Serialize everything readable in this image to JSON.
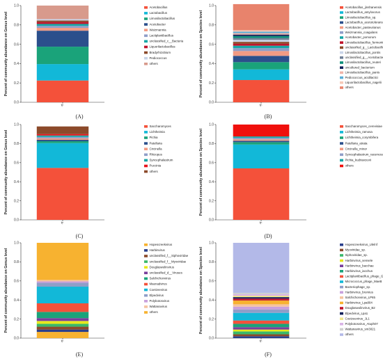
{
  "chart_data": [
    {
      "type": "bar",
      "stacked": true,
      "caption": "(A)",
      "ylabel": "Percent of community abundance on Genus level",
      "categories": [
        "A"
      ],
      "ylim": [
        0,
        1
      ],
      "yticks": [
        "0.0",
        "0.2",
        "0.4",
        "0.6",
        "0.8",
        "1.0"
      ],
      "series": [
        {
          "name": "Acetobacillus",
          "color": "#f4513a",
          "values": [
            0.225
          ]
        },
        {
          "name": "Lactobacillus",
          "color": "#12b8d8",
          "values": [
            0.17
          ]
        },
        {
          "name": "Limosilactobacillus",
          "color": "#1aa37a",
          "values": [
            0.18
          ]
        },
        {
          "name": "Acetobacter",
          "color": "#2b4f8c",
          "values": [
            0.165
          ]
        },
        {
          "name": "Weizmannia",
          "color": "#f29b84",
          "values": [
            0.03
          ]
        },
        {
          "name": "Lactiplantibacillus",
          "color": "#8f9ec8",
          "values": [
            0.02
          ]
        },
        {
          "name": "unclassified_c__Bacteria",
          "color": "#16a6a6",
          "values": [
            0.02
          ]
        },
        {
          "name": "Liquorilactobacillus",
          "color": "#c0142c",
          "values": [
            0.02
          ]
        },
        {
          "name": "Bradyrhizobium",
          "color": "#8c4a2a",
          "values": [
            0.015
          ]
        },
        {
          "name": "Pediococcus",
          "color": "#c9d4e8",
          "values": [
            0.015
          ]
        },
        {
          "name": "others",
          "color": "#d89a8c",
          "values": [
            0.14
          ]
        }
      ]
    },
    {
      "type": "bar",
      "stacked": true,
      "caption": "(B)",
      "ylabel": "Percent of community abundance on Species level",
      "categories": [
        "A"
      ],
      "ylim": [
        0,
        1
      ],
      "yticks": [
        "0.0",
        "0.2",
        "0.4",
        "0.6",
        "0.8",
        "1.0"
      ],
      "series": [
        {
          "name": "Acetobacillus_jinshanensis",
          "color": "#f4513a",
          "values": [
            0.23
          ]
        },
        {
          "name": "Lactobacillus_amylovorus",
          "color": "#12b8d8",
          "values": [
            0.11
          ]
        },
        {
          "name": "Limosilactobacillus_sp.",
          "color": "#1aa37a",
          "values": [
            0.075
          ]
        },
        {
          "name": "Lactobacillus_acetotolerans",
          "color": "#2b4f8c",
          "values": [
            0.065
          ]
        },
        {
          "name": "Acetobacter_pasteurianus",
          "color": "#f29b84",
          "values": [
            0.05
          ]
        },
        {
          "name": "Weizmannia_coagulans",
          "color": "#8f9ec8",
          "values": [
            0.03
          ]
        },
        {
          "name": "Acetobacter_pomorum",
          "color": "#16a6a6",
          "values": [
            0.025
          ]
        },
        {
          "name": "Limosilactobacillus_fermentum",
          "color": "#c0142c",
          "values": [
            0.02
          ]
        },
        {
          "name": "unclassified_g__Lactobacillus",
          "color": "#8c4a2a",
          "values": [
            0.02
          ]
        },
        {
          "name": "Limosilactobacillus_pontis",
          "color": "#c9d4e8",
          "values": [
            0.02
          ]
        },
        {
          "name": "unclassified_g__Acetobacter",
          "color": "#6f7f96",
          "values": [
            0.02
          ]
        },
        {
          "name": "Limosilactobacillus_reuteri",
          "color": "#0b8f7a",
          "values": [
            0.02
          ]
        },
        {
          "name": "uncultured_bacterium",
          "color": "#10205a",
          "values": [
            0.015
          ]
        },
        {
          "name": "Limosilactobacillus_panis",
          "color": "#f0b3a8",
          "values": [
            0.015
          ]
        },
        {
          "name": "Pediococcus_acidilactici",
          "color": "#5aaed6",
          "values": [
            0.015
          ]
        },
        {
          "name": "Liquorilactobacillus_nagelii",
          "color": "#f5c9b8",
          "values": [
            0.015
          ]
        },
        {
          "name": "others",
          "color": "#e8836c",
          "values": [
            0.27
          ]
        }
      ]
    },
    {
      "type": "bar",
      "stacked": true,
      "caption": "(C)",
      "ylabel": "Percent of community abundance on Genus level",
      "categories": [
        "A"
      ],
      "ylim": [
        0,
        1
      ],
      "yticks": [
        "0.0",
        "0.2",
        "0.4",
        "0.6",
        "0.8",
        "1.0"
      ],
      "series": [
        {
          "name": "Saccharomyces",
          "color": "#f4513a",
          "values": [
            0.545
          ]
        },
        {
          "name": "Lichtheimia",
          "color": "#12b8d8",
          "values": [
            0.26
          ]
        },
        {
          "name": "Pichia",
          "color": "#1aa37a",
          "values": [
            0.02
          ]
        },
        {
          "name": "Patellaria",
          "color": "#2b4f8c",
          "values": [
            0.015
          ]
        },
        {
          "name": "Circinella",
          "color": "#f29b84",
          "values": [
            0.015
          ]
        },
        {
          "name": "Rhizopus",
          "color": "#8f9ec8",
          "values": [
            0.015
          ]
        },
        {
          "name": "Syncephalastrum",
          "color": "#16a6a6",
          "values": [
            0.015
          ]
        },
        {
          "name": "Puccinia",
          "color": "#e8141c",
          "values": [
            0.015
          ]
        },
        {
          "name": "others",
          "color": "#8c4a2a",
          "values": [
            0.08
          ]
        }
      ]
    },
    {
      "type": "bar",
      "stacked": true,
      "caption": "(D)",
      "ylabel": "Percent of community abundance on Species level",
      "categories": [
        "A"
      ],
      "ylim": [
        0,
        1
      ],
      "yticks": [
        "0.0",
        "0.2",
        "0.4",
        "0.6",
        "0.8",
        "1.0"
      ],
      "series": [
        {
          "name": "Saccharomyces_cerevisiae",
          "color": "#f4513a",
          "values": [
            0.54
          ]
        },
        {
          "name": "Lichtheimia_ramosa",
          "color": "#12b8d8",
          "values": [
            0.25
          ]
        },
        {
          "name": "Lichtheimia_corymbifera",
          "color": "#1aa37a",
          "values": [
            0.025
          ]
        },
        {
          "name": "Patellaria_atrata",
          "color": "#2b4f8c",
          "values": [
            0.015
          ]
        },
        {
          "name": "Circinella_minor",
          "color": "#f29b84",
          "values": [
            0.015
          ]
        },
        {
          "name": "Syncephalastrum_racemosum",
          "color": "#8f9ec8",
          "values": [
            0.015
          ]
        },
        {
          "name": "Pichia_kudriavzevii",
          "color": "#16a6a6",
          "values": [
            0.015
          ]
        },
        {
          "name": "others",
          "color": "#f0100c",
          "values": [
            0.125
          ]
        }
      ]
    },
    {
      "type": "bar",
      "stacked": true,
      "caption": "(E)",
      "ylabel": "Percent of community abundance on Genus level",
      "categories": [
        "A"
      ],
      "ylim": [
        0,
        1
      ],
      "yticks": [
        "0.0",
        "0.2",
        "0.4",
        "0.6",
        "0.8",
        "1.0"
      ],
      "series": [
        {
          "name": "Hopescreekvirus",
          "color": "#f7b230",
          "values": [
            0.065
          ]
        },
        {
          "name": "Harbinvirus",
          "color": "#2a3f8c",
          "values": [
            0.025
          ]
        },
        {
          "name": "unclassified_f__Siphoviridae",
          "color": "#8c4a2a",
          "values": [
            0.03
          ]
        },
        {
          "name": "unclassified_f__Myoviridae",
          "color": "#3ab86b",
          "values": [
            0.03
          ]
        },
        {
          "name": "Douglaswolinvirus",
          "color": "#e8e81c",
          "values": [
            0.03
          ]
        },
        {
          "name": "unclassified_d__Viruses",
          "color": "#7a3f9c",
          "values": [
            0.03
          ]
        },
        {
          "name": "Salchichonvirus",
          "color": "#1aa37a",
          "values": [
            0.065
          ]
        },
        {
          "name": "Maenadvirus",
          "color": "#f4513a",
          "values": [
            0.09
          ]
        },
        {
          "name": "Coetzeevirus",
          "color": "#12b8d8",
          "values": [
            0.175
          ]
        },
        {
          "name": "Elpedvirus",
          "color": "#8f9ec8",
          "values": [
            0.04
          ]
        },
        {
          "name": "Polybotosvirus",
          "color": "#c9a0dc",
          "values": [
            0.015
          ]
        },
        {
          "name": "Wattanavirus",
          "color": "#f5c3a0",
          "values": [
            0.015
          ]
        },
        {
          "name": "others",
          "color": "#f7b230",
          "values": [
            0.39
          ]
        }
      ]
    },
    {
      "type": "bar",
      "stacked": true,
      "caption": "(F)",
      "ylabel": "Percent of community abundance on Species level",
      "categories": [
        "A"
      ],
      "ylim": [
        0,
        1
      ],
      "yticks": [
        "0.0",
        "0.2",
        "0.4",
        "0.6",
        "0.8",
        "1.0"
      ],
      "series": [
        {
          "name": "Hopescreekvirus_Ulelnf",
          "color": "#2a3f8c",
          "values": [
            0.02
          ]
        },
        {
          "name": "Myoviridae_sp.",
          "color": "#8c4a2a",
          "values": [
            0.02
          ]
        },
        {
          "name": "Siphoviridae_sp.",
          "color": "#3ab86b",
          "values": [
            0.03
          ]
        },
        {
          "name": "Harbinvirus_sensele",
          "color": "#e8e81c",
          "values": [
            0.02
          ]
        },
        {
          "name": "Harbinvirus_bacchae",
          "color": "#7a3f9c",
          "values": [
            0.025
          ]
        },
        {
          "name": "Harbinvirus_iacchus",
          "color": "#1aa37a",
          "values": [
            0.035
          ]
        },
        {
          "name": "Lactiplantibacillus_phage_Gut-P1",
          "color": "#f4513a",
          "values": [
            0.035
          ]
        },
        {
          "name": "Micrococcus_phage_MaeB",
          "color": "#12b8d8",
          "values": [
            0.08
          ]
        },
        {
          "name": "Bacteriophage_sp.",
          "color": "#8f9ec8",
          "values": [
            0.035
          ]
        },
        {
          "name": "Harbinvirus_bromius",
          "color": "#c9a0dc",
          "values": [
            0.03
          ]
        },
        {
          "name": "Salchichonvirus_LP65",
          "color": "#f5c3a0",
          "values": [
            0.025
          ]
        },
        {
          "name": "Harbinvirus_Lpa804",
          "color": "#f7b230",
          "values": [
            0.04
          ]
        },
        {
          "name": "Douglaswolinvirus_B2",
          "color": "#c0142c",
          "values": [
            0.02
          ]
        },
        {
          "name": "Elpedvirus_Lpa1",
          "color": "#10205a",
          "values": [
            0.015
          ]
        },
        {
          "name": "Coetzeevirus_JL1",
          "color": "#f0e68c",
          "values": [
            0.015
          ]
        },
        {
          "name": "Polybotosvirus_Atuph07",
          "color": "#d9b3e6",
          "values": [
            0.015
          ]
        },
        {
          "name": "Wattanavirus_sm3021",
          "color": "#cfcfcf",
          "values": [
            0.015
          ]
        },
        {
          "name": "others",
          "color": "#b3b9e8",
          "values": [
            0.525
          ]
        }
      ]
    }
  ]
}
